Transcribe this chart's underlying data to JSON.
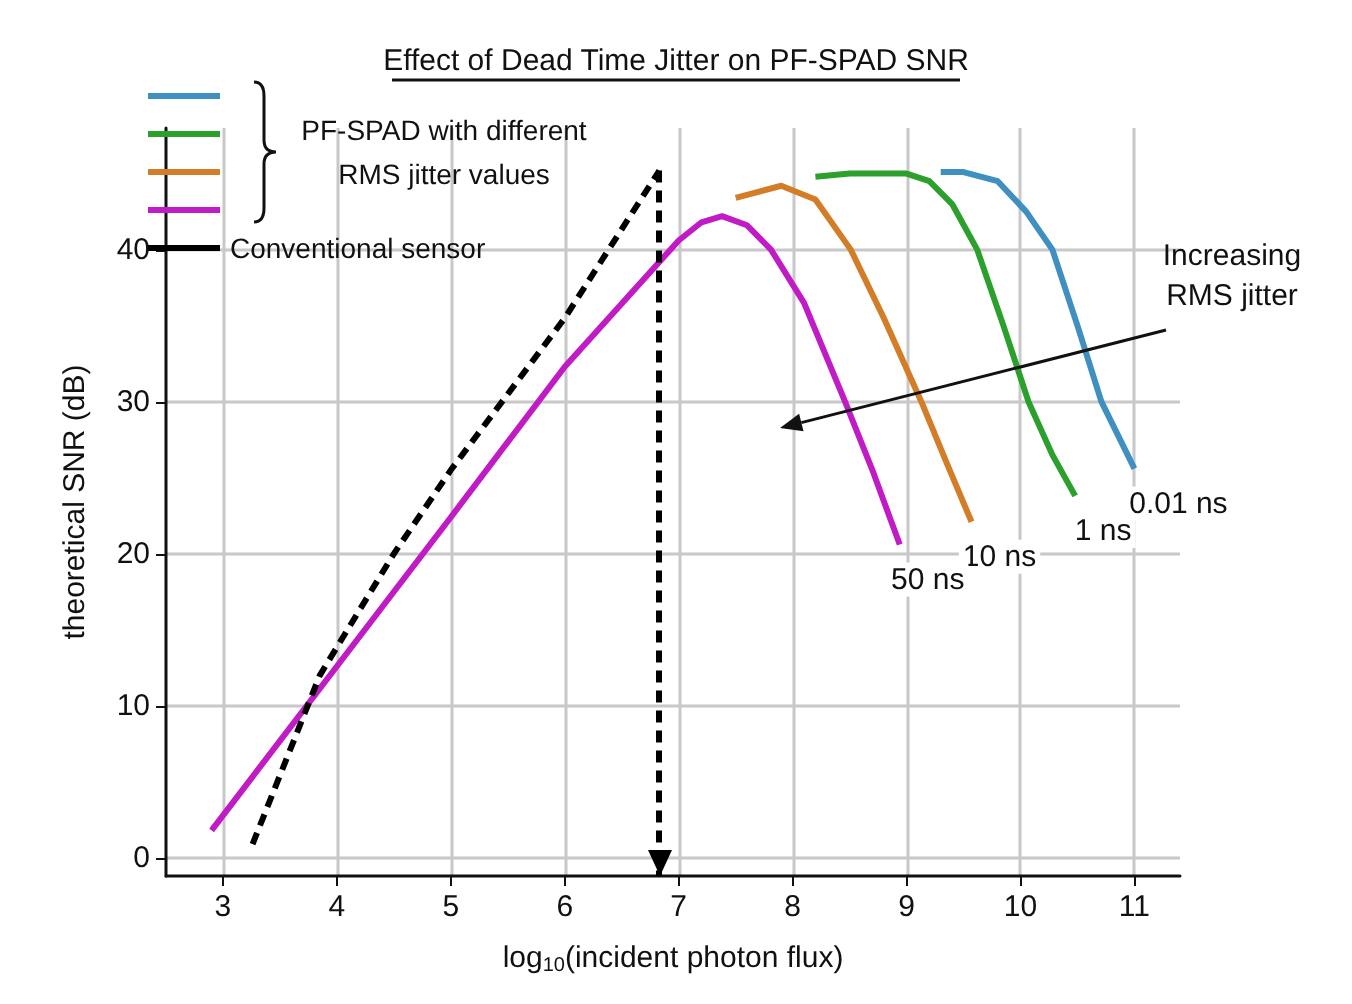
{
  "chart_data": {
    "type": "line",
    "title": "Effect of Dead Time Jitter on PF-SPAD SNR",
    "xlabel": "log$_{10}$(incident photon flux)",
    "ylabel": "theoretical SNR (dB)",
    "legend_title": "PF-SPAD with different RMS jitter values",
    "xlim": [
      2.5,
      11.4
    ],
    "ylim": [
      -1.2,
      48
    ],
    "xticks": [
      3,
      4,
      5,
      6,
      7,
      8,
      9,
      10,
      11
    ],
    "yticks": [
      0,
      10,
      20,
      30,
      40
    ],
    "grid": true,
    "legend": "top left",
    "annotations": [
      "Increasing\nRMS jitter"
    ],
    "ref_lines": [
      {
        "axis": "x",
        "value": 6.83,
        "color": "#000000",
        "line_style": "dashed"
      }
    ],
    "series": [
      {
        "name": "0.01 ns",
        "color": "#3f8fc0",
        "x": [
          9.3,
          9.5,
          9.8,
          10.05,
          10.28,
          10.5,
          10.71,
          11
        ],
        "values": [
          45.1,
          45.1,
          44.5,
          42.5,
          40,
          35,
          30,
          25.6
        ]
      },
      {
        "name": "1 ns",
        "color": "#2ca02c",
        "x": [
          8.2,
          8.5,
          9,
          9.2,
          9.4,
          9.62,
          9.85,
          10.07,
          10.28,
          10.48
        ],
        "values": [
          44.8,
          45,
          45,
          44.5,
          43,
          40,
          35,
          30,
          26.5,
          23.8
        ]
      },
      {
        "name": "10 ns",
        "color": "#d37d28",
        "x": [
          7.5,
          7.9,
          8.2,
          8.51,
          8.8,
          9.13,
          9.35,
          9.57
        ],
        "values": [
          43.4,
          44.2,
          43.3,
          40,
          35.5,
          30,
          26,
          22.1
        ]
      },
      {
        "name": "50 ns",
        "color": "#c11bc6",
        "x": [
          2.9,
          4,
          5,
          6,
          7,
          7.2,
          7.38,
          7.6,
          7.81,
          8.1,
          8.46,
          8.7,
          8.94
        ],
        "values": [
          1.8,
          12.6,
          22.4,
          32.3,
          40.6,
          41.8,
          42.2,
          41.6,
          40,
          36.5,
          30,
          25.5,
          20.6
        ]
      },
      {
        "name": "Conventional sensor",
        "color": "#000000",
        "line_style": "dashed",
        "x": [
          3.26,
          3.85,
          4.5,
          5,
          6,
          6.83
        ],
        "values": [
          0.9,
          12,
          20,
          25.5,
          35.5,
          45.2
        ]
      }
    ]
  }
}
